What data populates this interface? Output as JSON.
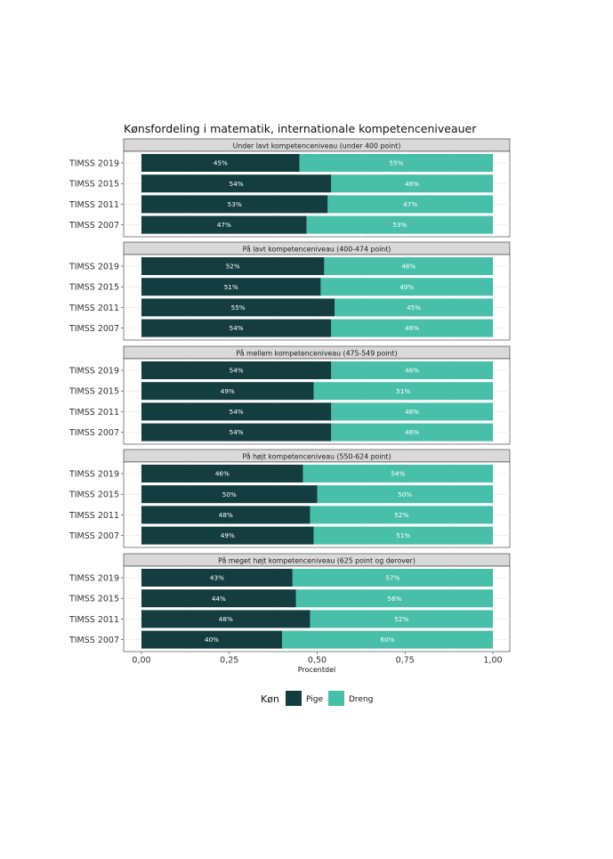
{
  "chart_data": {
    "type": "bar",
    "orientation": "horizontal",
    "stacked": true,
    "title": "Kønsfordeling i matematik, internationale kompetenceniveauer",
    "xlabel": "Procentdel",
    "ylabel": "",
    "xlim": [
      0,
      1
    ],
    "x_ticks": [
      "0,00",
      "0,25",
      "0,50",
      "0,75",
      "1,00"
    ],
    "x_tick_values": [
      0,
      0.25,
      0.5,
      0.75,
      1
    ],
    "categories": [
      "TIMSS 2019",
      "TIMSS 2015",
      "TIMSS 2011",
      "TIMSS 2007"
    ],
    "legend": {
      "title": "Køn",
      "position": "bottom"
    },
    "colors": {
      "Pige": "#143d3f",
      "Dreng": "#48bfa9"
    },
    "grid": true,
    "panels": [
      {
        "label": "Under lavt kompetenceniveau (under 400 point)",
        "series": [
          {
            "name": "Pige",
            "values": [
              0.45,
              0.54,
              0.53,
              0.47
            ],
            "labels": [
              "45%",
              "54%",
              "53%",
              "47%"
            ]
          },
          {
            "name": "Dreng",
            "values": [
              0.55,
              0.46,
              0.47,
              0.53
            ],
            "labels": [
              "55%",
              "46%",
              "47%",
              "53%"
            ]
          }
        ]
      },
      {
        "label": "På lavt kompetenceniveau (400-474 point)",
        "series": [
          {
            "name": "Pige",
            "values": [
              0.52,
              0.51,
              0.55,
              0.54
            ],
            "labels": [
              "52%",
              "51%",
              "55%",
              "54%"
            ]
          },
          {
            "name": "Dreng",
            "values": [
              0.48,
              0.49,
              0.45,
              0.46
            ],
            "labels": [
              "48%",
              "49%",
              "45%",
              "46%"
            ]
          }
        ]
      },
      {
        "label": "På mellem kompetenceniveau (475-549 point)",
        "series": [
          {
            "name": "Pige",
            "values": [
              0.54,
              0.49,
              0.54,
              0.54
            ],
            "labels": [
              "54%",
              "49%",
              "54%",
              "54%"
            ]
          },
          {
            "name": "Dreng",
            "values": [
              0.46,
              0.51,
              0.46,
              0.46
            ],
            "labels": [
              "46%",
              "51%",
              "46%",
              "46%"
            ]
          }
        ]
      },
      {
        "label": "På højt kompetenceniveau (550-624 point)",
        "series": [
          {
            "name": "Pige",
            "values": [
              0.46,
              0.5,
              0.48,
              0.49
            ],
            "labels": [
              "46%",
              "50%",
              "48%",
              "49%"
            ]
          },
          {
            "name": "Dreng",
            "values": [
              0.54,
              0.5,
              0.52,
              0.51
            ],
            "labels": [
              "54%",
              "50%",
              "52%",
              "51%"
            ]
          }
        ]
      },
      {
        "label": "På meget højt kompetenceniveau  (625 point og derover)",
        "series": [
          {
            "name": "Pige",
            "values": [
              0.43,
              0.44,
              0.48,
              0.4
            ],
            "labels": [
              "43%",
              "44%",
              "48%",
              "40%"
            ]
          },
          {
            "name": "Dreng",
            "values": [
              0.57,
              0.56,
              0.52,
              0.6
            ],
            "labels": [
              "57%",
              "56%",
              "52%",
              "60%"
            ]
          }
        ]
      }
    ]
  }
}
